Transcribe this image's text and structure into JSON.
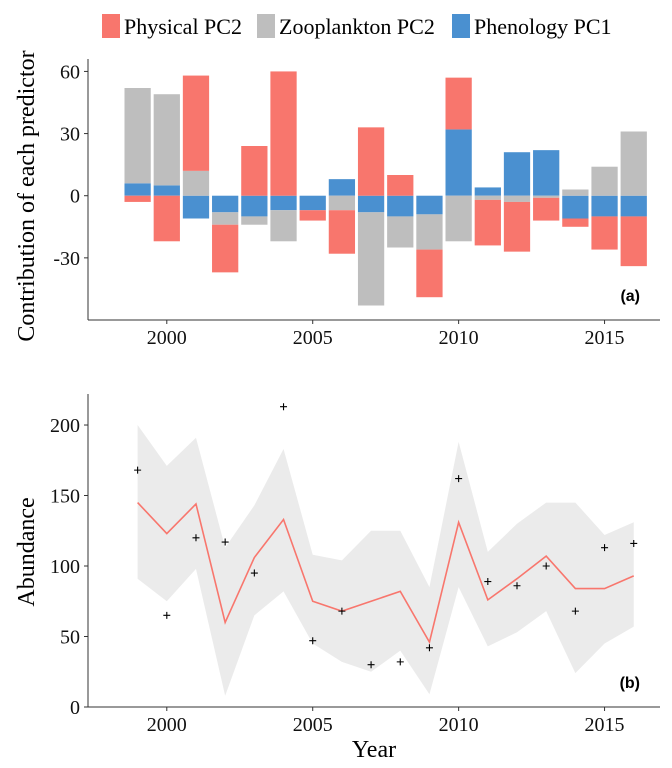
{
  "legend": {
    "items": [
      {
        "label": "Physical PC2",
        "color": "#F8766D"
      },
      {
        "label": "Zooplankton PC2",
        "color": "#BEBEBE"
      },
      {
        "label": "Phenology PC1",
        "color": "#4A90D0"
      }
    ]
  },
  "chart_data": [
    {
      "type": "bar",
      "stacking": "diverging",
      "panel_label": "(a)",
      "xlabel": "",
      "ylabel": "Contribution of each predictor",
      "xlim": [
        1997.3,
        2016.9
      ],
      "ylim": [
        -60,
        66
      ],
      "x_ticks": [
        2000,
        2005,
        2010,
        2015
      ],
      "x_tick_labels": [
        "2000",
        "2005",
        "2010",
        "2015"
      ],
      "y_ticks": [
        -30,
        0,
        30,
        60
      ],
      "y_tick_labels": [
        "-30",
        "0",
        "30",
        "60"
      ],
      "x": [
        1999,
        2000,
        2001,
        2002,
        2003,
        2004,
        2005,
        2006,
        2007,
        2008,
        2009,
        2010,
        2011,
        2012,
        2013,
        2014,
        2015,
        2016
      ],
      "series": [
        {
          "name": "Phenology PC1",
          "color": "#4A90D0",
          "values": [
            6,
            5,
            -11,
            -8,
            -10,
            -7,
            -7,
            8,
            -8,
            -10,
            -9,
            32,
            4,
            21,
            22,
            -11,
            -10,
            -10
          ]
        },
        {
          "name": "Zooplankton PC2",
          "color": "#BEBEBE",
          "values": [
            46,
            44,
            12,
            -6,
            -4,
            -15,
            0,
            -7,
            -45,
            -15,
            -17,
            -22,
            -2,
            -3,
            -1,
            3,
            14,
            31
          ]
        },
        {
          "name": "Physical PC2",
          "color": "#F8766D",
          "values": [
            -3,
            -22,
            46,
            -23,
            24,
            60,
            -5,
            -21,
            33,
            10,
            -23,
            25,
            -22,
            -24,
            -11,
            -4,
            -16,
            -24
          ]
        }
      ]
    },
    {
      "type": "line",
      "panel_label": "(b)",
      "xlabel": "Year",
      "ylabel": "Abundance",
      "xlim": [
        1997.3,
        2016.9
      ],
      "ylim": [
        0,
        222
      ],
      "x_ticks": [
        2000,
        2005,
        2010,
        2015
      ],
      "x_tick_labels": [
        "2000",
        "2005",
        "2010",
        "2015"
      ],
      "y_ticks": [
        0,
        50,
        100,
        150,
        200
      ],
      "y_tick_labels": [
        "0",
        "50",
        "100",
        "150",
        "200"
      ],
      "x": [
        1999,
        2000,
        2001,
        2002,
        2003,
        2004,
        2005,
        2006,
        2007,
        2008,
        2009,
        2010,
        2011,
        2012,
        2013,
        2014,
        2015,
        2016
      ],
      "fitted": [
        145,
        123,
        144,
        60,
        106,
        133,
        75,
        68,
        75,
        82,
        46,
        131,
        76,
        91,
        107,
        84,
        84,
        93
      ],
      "ribbon_lower": [
        91,
        75,
        98,
        8,
        65,
        82,
        45,
        32,
        25,
        40,
        9,
        85,
        43,
        53,
        68,
        24,
        45,
        57
      ],
      "ribbon_upper": [
        200,
        171,
        191,
        113,
        143,
        183,
        108,
        104,
        125,
        125,
        85,
        188,
        110,
        130,
        145,
        145,
        122,
        131
      ],
      "observed": [
        168,
        65,
        120,
        117,
        95,
        213,
        47,
        68,
        30,
        32,
        42,
        162,
        89,
        86,
        100,
        68,
        113,
        116
      ],
      "line_color": "#F8766D",
      "ribbon_color": "#EBEBEB"
    }
  ]
}
